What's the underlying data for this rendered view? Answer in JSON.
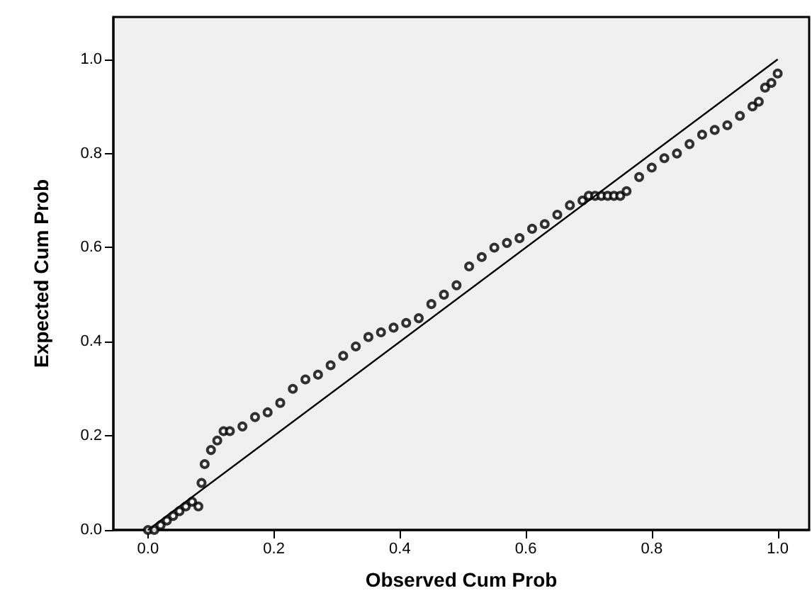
{
  "chart_data": {
    "type": "scatter",
    "xlabel": "Observed Cum Prob",
    "ylabel": "Expected Cum Prob",
    "xlim": [
      -0.055,
      1.05
    ],
    "ylim": [
      0,
      1.09
    ],
    "xticks": [
      {
        "value": 0,
        "label": "0.0"
      },
      0.2,
      0.4,
      0.6,
      0.8,
      {
        "value": 1,
        "label": "1.0"
      }
    ],
    "yticks": [
      {
        "value": 0,
        "label": "0.0"
      },
      0.2,
      0.4,
      0.6,
      0.8,
      {
        "value": 1,
        "label": "1.0"
      }
    ],
    "grid": false,
    "marker": "circle",
    "series": [
      {
        "color": "#000000",
        "x": [
          0.0,
          0.01,
          0.02,
          0.03,
          0.04,
          0.05,
          0.06,
          0.07,
          0.08,
          0.085,
          0.09,
          0.1,
          0.11,
          0.12,
          0.13,
          0.15,
          0.17,
          0.19,
          0.21,
          0.23,
          0.25,
          0.27,
          0.29,
          0.31,
          0.33,
          0.35,
          0.37,
          0.39,
          0.41,
          0.43,
          0.45,
          0.47,
          0.49,
          0.51,
          0.53,
          0.55,
          0.57,
          0.59,
          0.61,
          0.63,
          0.65,
          0.67,
          0.69,
          0.7,
          0.71,
          0.72,
          0.73,
          0.74,
          0.75,
          0.76,
          0.78,
          0.8,
          0.82,
          0.84,
          0.86,
          0.88,
          0.9,
          0.92,
          0.94,
          0.96,
          0.97,
          0.98,
          0.99,
          1.0
        ],
        "values": [
          0.0,
          0.0,
          0.01,
          0.02,
          0.03,
          0.04,
          0.05,
          0.06,
          0.05,
          0.1,
          0.14,
          0.17,
          0.19,
          0.21,
          0.21,
          0.22,
          0.24,
          0.25,
          0.27,
          0.3,
          0.32,
          0.33,
          0.35,
          0.37,
          0.39,
          0.41,
          0.42,
          0.43,
          0.44,
          0.45,
          0.48,
          0.5,
          0.52,
          0.56,
          0.58,
          0.6,
          0.61,
          0.62,
          0.64,
          0.65,
          0.67,
          0.69,
          0.7,
          0.71,
          0.71,
          0.71,
          0.71,
          0.71,
          0.71,
          0.72,
          0.75,
          0.77,
          0.79,
          0.8,
          0.82,
          0.84,
          0.85,
          0.86,
          0.88,
          0.9,
          0.91,
          0.94,
          0.95,
          0.97
        ]
      },
      {
        "type": "line",
        "marker": "none",
        "color": "#000000",
        "x": [
          0,
          1
        ],
        "values": [
          0,
          1
        ]
      }
    ]
  }
}
